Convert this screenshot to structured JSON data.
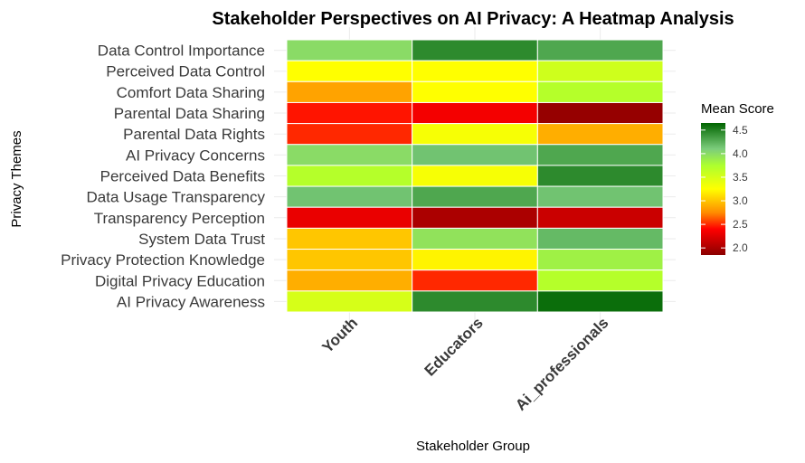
{
  "chart_data": {
    "type": "heatmap",
    "title": "Stakeholder Perspectives on AI Privacy: A Heatmap Analysis",
    "xlabel": "Stakeholder Group",
    "ylabel": "Privacy Themes",
    "x_categories": [
      "Youth",
      "Educators",
      "Ai_professionals"
    ],
    "y_categories": [
      "Data Control Importance",
      "Perceived Data Control",
      "Comfort Data Sharing",
      "Parental Data Sharing",
      "Parental Data Rights",
      "AI Privacy Concerns",
      "Perceived Data Benefits",
      "Data Usage Transparency",
      "Transparency Perception",
      "System Data Trust",
      "Privacy Protection Knowledge",
      "Digital Privacy Education",
      "AI Privacy Awareness"
    ],
    "values": [
      [
        4.0,
        4.45,
        4.3
      ],
      [
        3.25,
        3.25,
        3.55
      ],
      [
        2.85,
        3.25,
        3.7
      ],
      [
        2.45,
        2.35,
        1.9
      ],
      [
        2.5,
        3.3,
        2.9
      ],
      [
        4.0,
        4.15,
        4.3
      ],
      [
        3.7,
        3.3,
        4.45
      ],
      [
        4.15,
        4.3,
        4.15
      ],
      [
        2.3,
        2.0,
        2.15
      ],
      [
        3.0,
        3.95,
        4.2
      ],
      [
        3.0,
        3.2,
        3.85
      ],
      [
        2.9,
        2.5,
        3.7
      ],
      [
        3.5,
        4.45,
        4.6
      ]
    ],
    "color_range": [
      1.85,
      4.65
    ],
    "color_scale": [
      {
        "v": 1.85,
        "c": "#8B0000"
      },
      {
        "v": 2.4,
        "c": "#FF0000"
      },
      {
        "v": 2.75,
        "c": "#FF8C00"
      },
      {
        "v": 3.25,
        "c": "#FFFF00"
      },
      {
        "v": 3.75,
        "c": "#ADFF2F"
      },
      {
        "v": 4.1,
        "c": "#7CCD7C"
      },
      {
        "v": 4.65,
        "c": "#006400"
      }
    ],
    "legend": {
      "title": "Mean Score",
      "ticks": [
        2.0,
        2.5,
        3.0,
        3.5,
        4.0,
        4.5
      ],
      "tick_labels": [
        "2.0",
        "2.5",
        "3.0",
        "3.5",
        "4.0",
        "4.5"
      ],
      "position": "right"
    },
    "grid": true
  }
}
